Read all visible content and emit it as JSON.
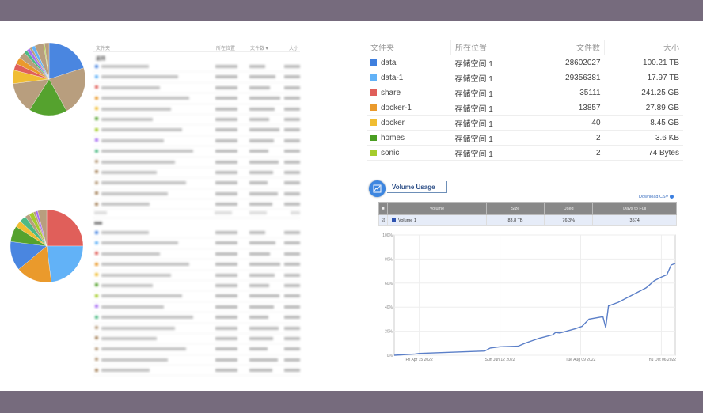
{
  "left_panels": [
    {
      "header": [
        "文件夹",
        "所在位置",
        "文件数 ▾",
        "大小"
      ],
      "back_label": "返回",
      "pie": [
        {
          "v": 20,
          "c": "#4a86e0"
        },
        {
          "v": 22,
          "c": "#b89e7e"
        },
        {
          "v": 17,
          "c": "#55a22e"
        },
        {
          "v": 14,
          "c": "#b89e7e"
        },
        {
          "v": 6,
          "c": "#f0bd32"
        },
        {
          "v": 3,
          "c": "#e05f5a"
        },
        {
          "v": 3,
          "c": "#ea9a2c"
        },
        {
          "v": 3,
          "c": "#b89e7e"
        },
        {
          "v": 1.5,
          "c": "#4cba84"
        },
        {
          "v": 1.5,
          "c": "#a76ef2"
        },
        {
          "v": 1,
          "c": "#b89e7e"
        },
        {
          "v": 1.5,
          "c": "#62b2f7"
        },
        {
          "v": 4,
          "c": "#b89e7e"
        },
        {
          "v": 0.5,
          "c": "#a5cc2c"
        },
        {
          "v": 2,
          "c": "#b89e7e"
        }
      ],
      "row_colors": [
        "#4a86e0",
        "#62b2f7",
        "#e05f5a",
        "#ea9a2c",
        "#f0bd32",
        "#55a22e",
        "#a5cc2c",
        "#a76ef2",
        "#4cba84",
        "#b89e7e",
        "#a88660",
        "#b89e7e",
        "#a88660",
        "#a88660"
      ]
    },
    {
      "pie": [
        {
          "v": 25,
          "c": "#e05f5a"
        },
        {
          "v": 23,
          "c": "#62b2f7"
        },
        {
          "v": 16,
          "c": "#ea9a2c"
        },
        {
          "v": 13,
          "c": "#4a86e0"
        },
        {
          "v": 7,
          "c": "#55a22e"
        },
        {
          "v": 3,
          "c": "#f0bd32"
        },
        {
          "v": 3,
          "c": "#4cba84"
        },
        {
          "v": 2,
          "c": "#b89e7e"
        },
        {
          "v": 2,
          "c": "#a5cc2c"
        },
        {
          "v": 1,
          "c": "#b89e7e"
        },
        {
          "v": 1,
          "c": "#a76ef2"
        },
        {
          "v": 4,
          "c": "#b89e7e"
        }
      ],
      "row_colors": [
        "#4a86e0",
        "#62b2f7",
        "#e05f5a",
        "#ea9a2c",
        "#f0bd32",
        "#55a22e",
        "#a5cc2c",
        "#a76ef2",
        "#4cba84",
        "#b89e7e",
        "#a88660",
        "#b89e7e",
        "#b89e7e",
        "#a88660"
      ]
    }
  ],
  "folders": {
    "header": {
      "name": "文件夹",
      "location": "所在位置",
      "count": "文件数",
      "size": "大小"
    },
    "rows": [
      {
        "name": "data",
        "color": "#3f7fde",
        "location": "存储空间 1",
        "count": "28602027",
        "size": "100.21 TB"
      },
      {
        "name": "data-1",
        "color": "#62b2f7",
        "location": "存储空间 1",
        "count": "29356381",
        "size": "17.97 TB"
      },
      {
        "name": "share",
        "color": "#e05f5a",
        "location": "存储空间 1",
        "count": "35111",
        "size": "241.25 GB"
      },
      {
        "name": "docker-1",
        "color": "#ea9a2c",
        "location": "存储空间 1",
        "count": "13857",
        "size": "27.89 GB"
      },
      {
        "name": "docker",
        "color": "#f0bd32",
        "location": "存储空间 1",
        "count": "40",
        "size": "8.45 GB"
      },
      {
        "name": "homes",
        "color": "#4a9e22",
        "location": "存储空间 1",
        "count": "2",
        "size": "3.6 KB"
      },
      {
        "name": "sonic",
        "color": "#a5cc2c",
        "location": "存储空间 1",
        "count": "2",
        "size": "74 Bytes"
      }
    ]
  },
  "volume_usage": {
    "title": "Volume Usage",
    "download_csv": "Download CSV",
    "columns": [
      "Volume",
      "Size",
      "Used",
      "Days to Full"
    ],
    "row": {
      "volume": "Volume 1",
      "size": "83.8 TB",
      "used": "76.3%",
      "days_to_full": "3574"
    }
  },
  "chart_data": {
    "type": "line",
    "ylim": [
      0,
      100
    ],
    "yticks": [
      "0%",
      "20%",
      "40%",
      "60%",
      "80%",
      "100%"
    ],
    "xticks": [
      "Fri Apr 15 2022",
      "Sun Jun 12 2022",
      "Tue Aug 09 2022",
      "Thu Oct 06 2022"
    ],
    "grid": true,
    "color": "#5b7fc8",
    "points": [
      [
        "2022-03-28",
        0
      ],
      [
        "2022-04-12",
        1
      ],
      [
        "2022-04-15",
        1.5
      ],
      [
        "2022-05-20",
        3
      ],
      [
        "2022-06-01",
        3.5
      ],
      [
        "2022-06-05",
        6
      ],
      [
        "2022-06-12",
        7
      ],
      [
        "2022-06-25",
        7.5
      ],
      [
        "2022-06-30",
        10
      ],
      [
        "2022-07-05",
        12
      ],
      [
        "2022-07-10",
        14
      ],
      [
        "2022-07-20",
        17
      ],
      [
        "2022-07-22",
        19
      ],
      [
        "2022-07-25",
        18.5
      ],
      [
        "2022-08-05",
        22
      ],
      [
        "2022-08-10",
        24
      ],
      [
        "2022-08-15",
        30
      ],
      [
        "2022-08-25",
        32
      ],
      [
        "2022-08-27",
        23
      ],
      [
        "2022-08-29",
        41
      ],
      [
        "2022-09-05",
        44
      ],
      [
        "2022-09-15",
        50
      ],
      [
        "2022-09-25",
        56
      ],
      [
        "2022-10-01",
        62
      ],
      [
        "2022-10-06",
        65
      ],
      [
        "2022-10-10",
        67
      ],
      [
        "2022-10-13",
        75
      ],
      [
        "2022-10-16",
        76.3
      ]
    ]
  }
}
